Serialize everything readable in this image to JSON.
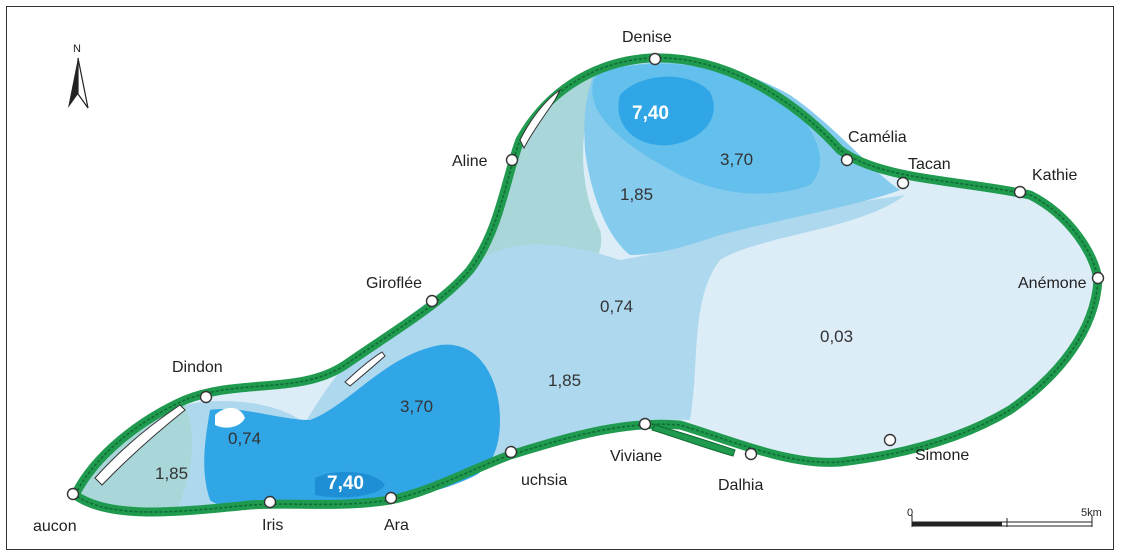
{
  "map": {
    "north_label": "N",
    "colors": {
      "reef": "#1f9a4e",
      "reef_edge": "#0e6b32",
      "zone_low": "#dcedf8",
      "zone_mid": "#aed8ee",
      "zone_high": "#63c0ec",
      "zone_max": "#31a6e6",
      "zone_grey": "#a9d6d8"
    },
    "stations": [
      {
        "id": "denise",
        "name": "Denise"
      },
      {
        "id": "aline",
        "name": "Aline"
      },
      {
        "id": "camelia",
        "name": "Camélia"
      },
      {
        "id": "tacan",
        "name": "Tacan"
      },
      {
        "id": "kathie",
        "name": "Kathie"
      },
      {
        "id": "anemone",
        "name": "Anémone"
      },
      {
        "id": "giroflee",
        "name": "Giroflée"
      },
      {
        "id": "dindon",
        "name": "Dindon"
      },
      {
        "id": "simone",
        "name": "Simone"
      },
      {
        "id": "dalhia",
        "name": "Dalhia"
      },
      {
        "id": "viviane",
        "name": "Viviane"
      },
      {
        "id": "fuchsia",
        "name": "uchsia"
      },
      {
        "id": "ara",
        "name": "Ara"
      },
      {
        "id": "iris",
        "name": "Iris"
      },
      {
        "id": "faucon",
        "name": "aucon"
      }
    ],
    "zone_values": {
      "north_max": "7,40",
      "north_high": "3,70",
      "north_mid": "1,85",
      "center_mid": "0,74",
      "east_low": "0,03",
      "south_high": "3,70",
      "south_mid": "1,85",
      "southwest_max": "7,40",
      "west_mid": "0,74",
      "west_low": "1,85"
    },
    "scale": {
      "start_label": "0",
      "end_label": "5km"
    }
  }
}
